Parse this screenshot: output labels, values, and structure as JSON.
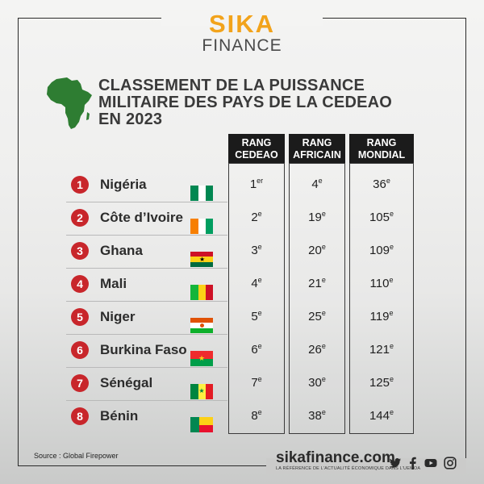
{
  "brand": {
    "line1": "SIKA",
    "line2": "FINANCE"
  },
  "title": [
    "CLASSEMENT DE LA PUISSANCE",
    "MILITAIRE DES PAYS DE LA CEDEAO",
    "EN 2023"
  ],
  "columns": [
    {
      "line1": "RANG",
      "line2": "CEDEAO"
    },
    {
      "line1": "RANG",
      "line2": "AFRICAIN"
    },
    {
      "line1": "RANG",
      "line2": "MONDIAL"
    }
  ],
  "rows": [
    {
      "num": "1",
      "country": "Nigéria",
      "flag": "nigeria-flag-icon",
      "cedeao": "1",
      "cedeao_suffix": "er",
      "africain": "4",
      "africain_suffix": "e",
      "mondial": "36",
      "mondial_suffix": "e"
    },
    {
      "num": "2",
      "country": "Côte d’Ivoire",
      "flag": "cote-divoire-flag-icon",
      "cedeao": "2",
      "cedeao_suffix": "e",
      "africain": "19",
      "africain_suffix": "e",
      "mondial": "105",
      "mondial_suffix": "e"
    },
    {
      "num": "3",
      "country": "Ghana",
      "flag": "ghana-flag-icon",
      "cedeao": "3",
      "cedeao_suffix": "e",
      "africain": "20",
      "africain_suffix": "e",
      "mondial": "109",
      "mondial_suffix": "e"
    },
    {
      "num": "4",
      "country": "Mali",
      "flag": "mali-flag-icon",
      "cedeao": "4",
      "cedeao_suffix": "e",
      "africain": "21",
      "africain_suffix": "e",
      "mondial": "110",
      "mondial_suffix": "e"
    },
    {
      "num": "5",
      "country": "Niger",
      "flag": "niger-flag-icon",
      "cedeao": "5",
      "cedeao_suffix": "e",
      "africain": "25",
      "africain_suffix": "e",
      "mondial": "119",
      "mondial_suffix": "e"
    },
    {
      "num": "6",
      "country": "Burkina Faso",
      "flag": "burkina-faso-flag-icon",
      "cedeao": "6",
      "cedeao_suffix": "e",
      "africain": "26",
      "africain_suffix": "e",
      "mondial": "121",
      "mondial_suffix": "e"
    },
    {
      "num": "7",
      "country": "Sénégal",
      "flag": "senegal-flag-icon",
      "cedeao": "7",
      "cedeao_suffix": "e",
      "africain": "30",
      "africain_suffix": "e",
      "mondial": "125",
      "mondial_suffix": "e"
    },
    {
      "num": "8",
      "country": "Bénin",
      "flag": "benin-flag-icon",
      "cedeao": "8",
      "cedeao_suffix": "e",
      "africain": "38",
      "africain_suffix": "e",
      "mondial": "144",
      "mondial_suffix": "e"
    }
  ],
  "footer": {
    "source": "Source : Global Firepower",
    "site": "sikafinance.com",
    "tagline": "LA RÉFÉRENCE DE L’ACTUALITÉ ÉCONOMIQUE DANS L’UEMOA"
  },
  "social": [
    "twitter-icon",
    "facebook-icon",
    "youtube-icon",
    "instagram-icon"
  ],
  "colors": {
    "brand_orange": "#f2a31b",
    "africa_green": "#2e7d32",
    "badge_red": "#c8262b",
    "header_black": "#1b1b1b"
  }
}
